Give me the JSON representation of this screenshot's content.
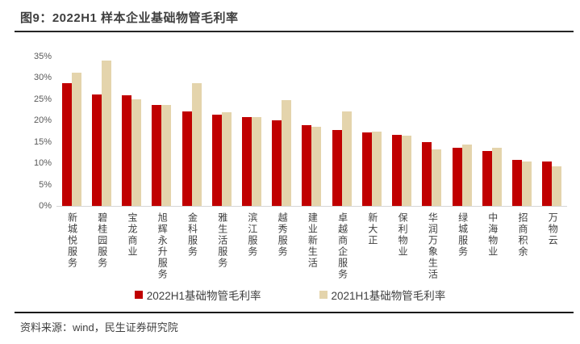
{
  "header": {
    "title": "图9：2022H1 样本企业基础物管毛利率"
  },
  "footer": {
    "source": "资料来源：wind，民生证券研究院"
  },
  "colors": {
    "series_2022": "#C00000",
    "series_2021": "#E4D4AC",
    "axis_line": "#D6D6D6",
    "title_text": "#3F3F3F",
    "rule": "#262626"
  },
  "chart_data": {
    "type": "bar",
    "title": "图9：2022H1 样本企业基础物管毛利率",
    "categories": [
      "新城悦服务",
      "碧桂园服务",
      "宝龙商业",
      "旭辉永升服务",
      "金科服务",
      "雅生活服务",
      "滨江服务",
      "越秀服务",
      "建业新生活",
      "卓越商企服务",
      "新大正",
      "保利物业",
      "华润万象生活",
      "绿城服务",
      "中海物业",
      "招商积余",
      "万物云"
    ],
    "series": [
      {
        "name": "2022H1基础物管毛利率",
        "color": "#C00000",
        "values": [
          28.8,
          26.2,
          26.0,
          23.7,
          22.2,
          21.4,
          20.8,
          20.1,
          19.0,
          17.8,
          17.3,
          16.7,
          15.0,
          13.6,
          12.9,
          10.8,
          10.4
        ]
      },
      {
        "name": "2021H1基础物管毛利率",
        "color": "#E4D4AC",
        "values": [
          31.2,
          34.0,
          24.9,
          23.6,
          28.7,
          22.0,
          20.8,
          24.7,
          18.5,
          22.2,
          17.5,
          16.5,
          13.3,
          14.3,
          13.7,
          10.5,
          9.3
        ]
      }
    ],
    "xlabel": "",
    "ylabel": "",
    "ylim": [
      0,
      35
    ],
    "ytick_step": 5,
    "ytick_format": "percent",
    "grid": false,
    "legend_position": "bottom"
  }
}
